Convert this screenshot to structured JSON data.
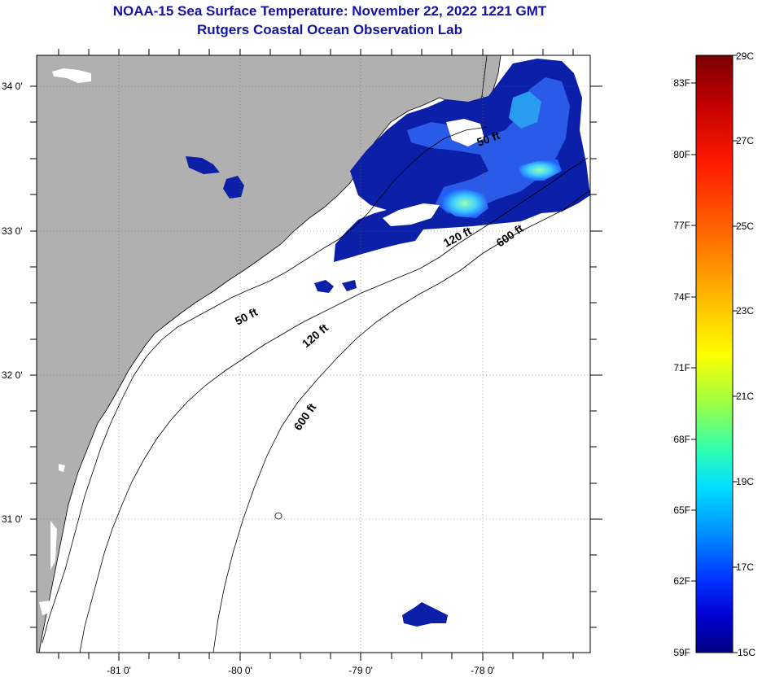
{
  "title": {
    "line1": "NOAA-15 Sea Surface Temperature:  November 22, 2022 1221 GMT",
    "line2": "Rutgers Coastal Ocean Observation Lab"
  },
  "map": {
    "lat_labels": [
      "34 0'",
      "33 0'",
      "32 0'",
      "31 0'"
    ],
    "lon_labels": [
      "-81 0'",
      "-80 0'",
      "-79 0'",
      "-78 0'"
    ],
    "contour_labels": [
      "50 ft",
      "120 ft",
      "600 ft",
      "50 ft",
      "120 ft",
      "600 ft"
    ]
  },
  "colorbar": {
    "fahrenheit_labels": [
      "83F",
      "80F",
      "77F",
      "74F",
      "71F",
      "68F",
      "65F",
      "62F",
      "59F"
    ],
    "celsius_labels": [
      "29C",
      "27C",
      "25C",
      "23C",
      "21C",
      "19C",
      "17C",
      "15C"
    ],
    "colors": [
      "#7a0000",
      "#c00000",
      "#ff1a00",
      "#ff6a00",
      "#ffb400",
      "#ffff00",
      "#a0ff40",
      "#30ffb0",
      "#00e0ff",
      "#0090ff",
      "#0030ff",
      "#0000d0",
      "#000080"
    ]
  }
}
